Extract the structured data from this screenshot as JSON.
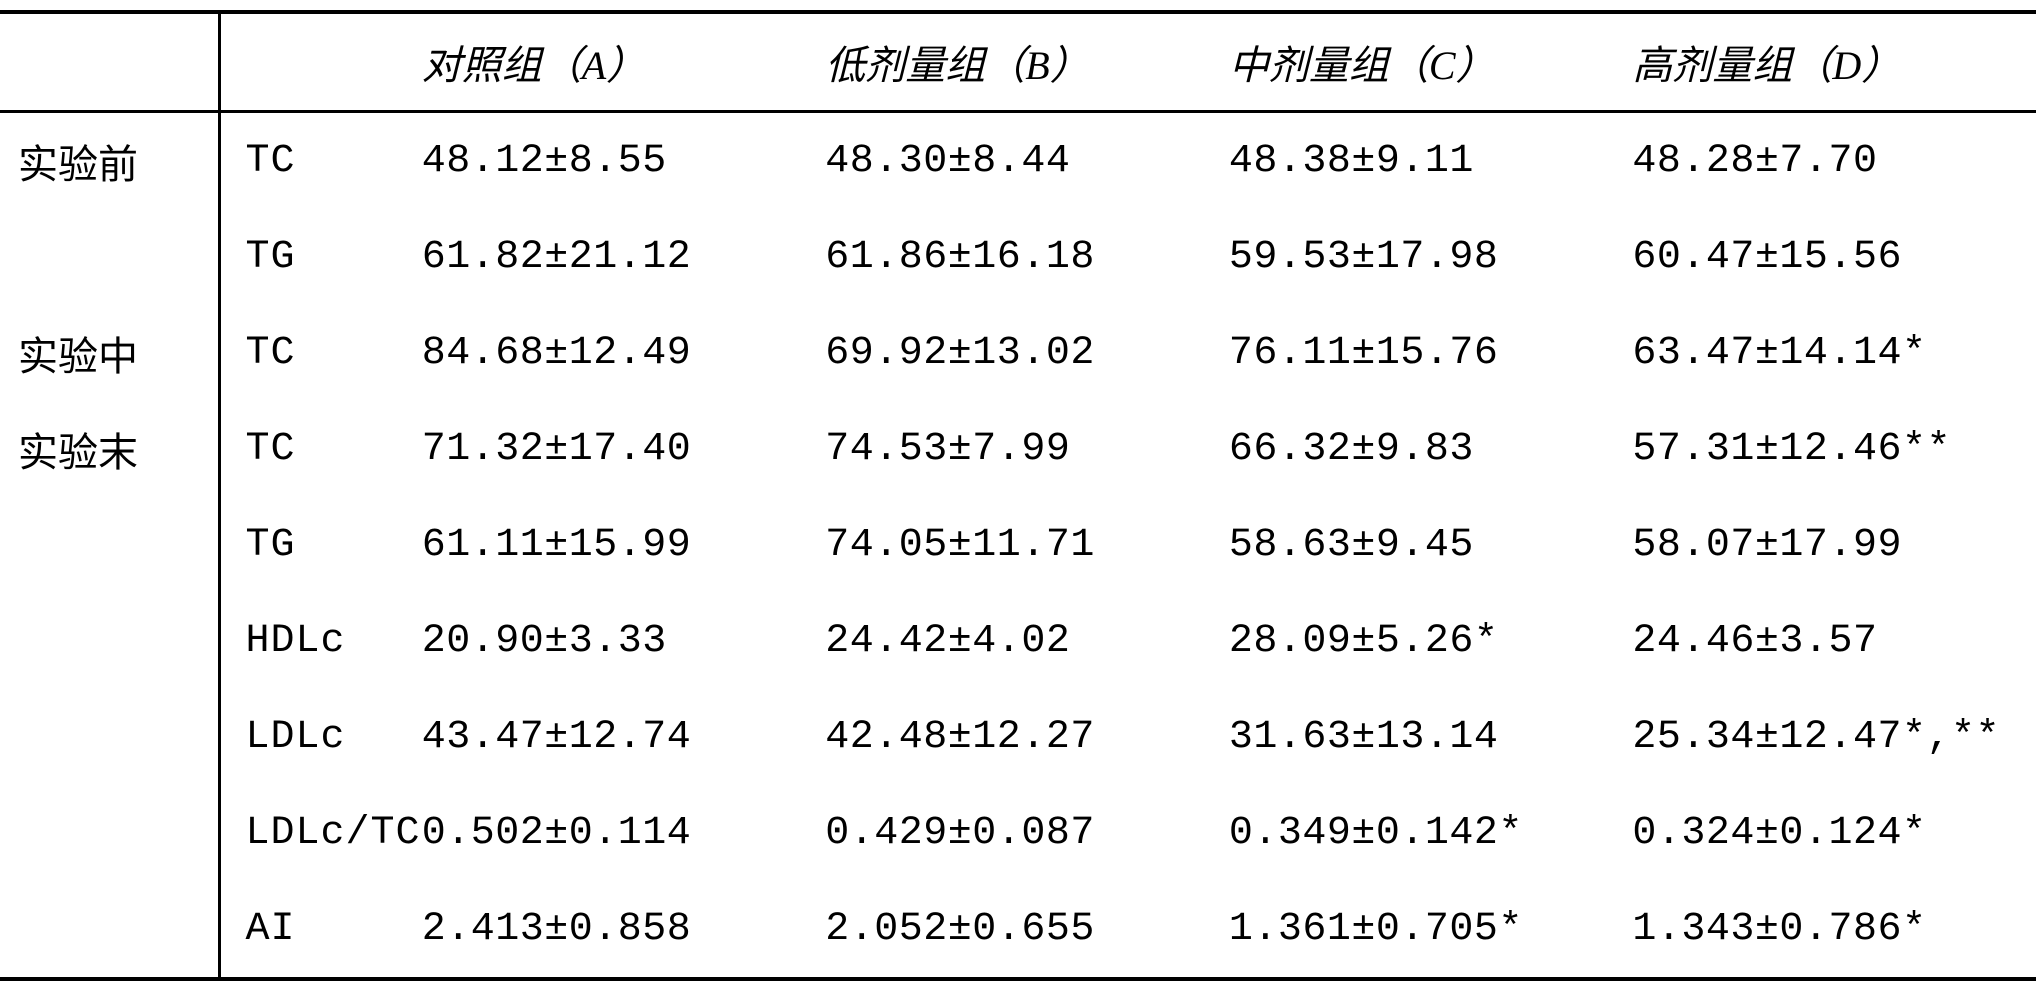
{
  "type": "table",
  "background_color": "#ffffff",
  "text_color": "#000000",
  "border_color": "#000000",
  "font_size_pt": 30,
  "header_font_style": "italic",
  "columns": {
    "stage_header": "",
    "metric_header": "",
    "groups": [
      "对照组（A）",
      "低剂量组（B）",
      "中剂量组（C）",
      "高剂量组（D）"
    ]
  },
  "rows": [
    {
      "stage": "实验前",
      "metric": "TC",
      "A": "48.12±8.55",
      "B": "48.30±8.44",
      "C": "48.38±9.11",
      "D": "48.28±7.70"
    },
    {
      "stage": "",
      "metric": "TG",
      "A": "61.82±21.12",
      "B": "61.86±16.18",
      "C": "59.53±17.98",
      "D": "60.47±15.56"
    },
    {
      "stage": "实验中",
      "metric": "TC",
      "A": "84.68±12.49",
      "B": "69.92±13.02",
      "C": "76.11±15.76",
      "D": "63.47±14.14*"
    },
    {
      "stage": "实验末",
      "metric": "TC",
      "A": "71.32±17.40",
      "B": "74.53±7.99",
      "C": "66.32±9.83",
      "D": "57.31±12.46**"
    },
    {
      "stage": "",
      "metric": "TG",
      "A": "61.11±15.99",
      "B": "74.05±11.71",
      "C": "58.63±9.45",
      "D": "58.07±17.99"
    },
    {
      "stage": "",
      "metric": "HDLc",
      "A": "20.90±3.33",
      "B": "24.42±4.02",
      "C": "28.09±5.26*",
      "D": "24.46±3.57"
    },
    {
      "stage": "",
      "metric": "LDLc",
      "A": "43.47±12.74",
      "B": "42.48±12.27",
      "C": "31.63±13.14",
      "D": "25.34±12.47*,**"
    },
    {
      "stage": "",
      "metric": "LDLc/TC",
      "A": "0.502±0.114",
      "B": "0.429±0.087",
      "C": "0.349±0.142*",
      "D": "0.324±0.124*"
    },
    {
      "stage": "",
      "metric": "AI",
      "A": "2.413±0.858",
      "B": "2.052±0.655",
      "C": "1.361±0.705*",
      "D": "1.343±0.786*"
    }
  ]
}
